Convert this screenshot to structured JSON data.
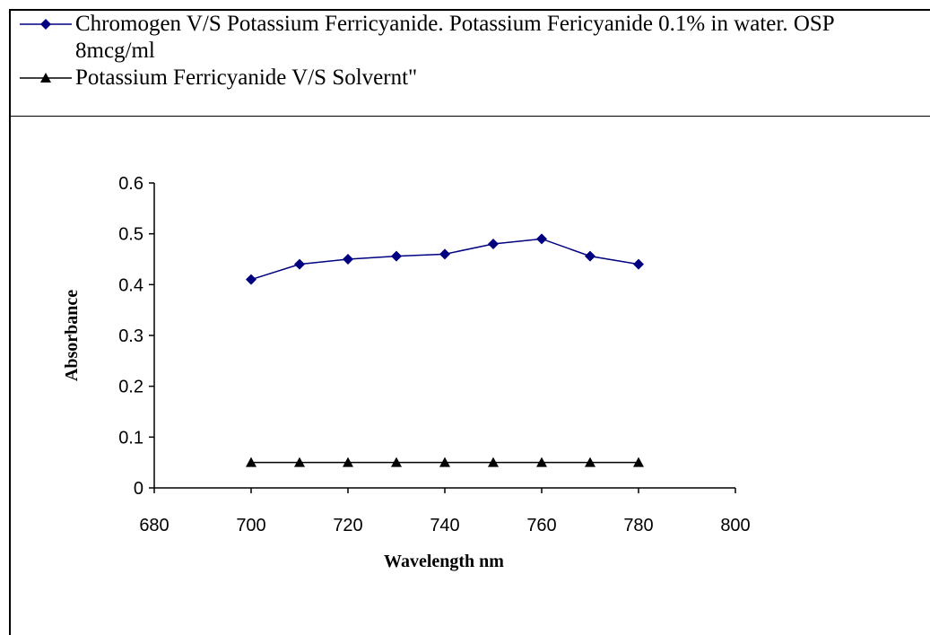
{
  "chart_data": {
    "type": "line",
    "x_label": "Wavelength nm",
    "y_label": "Absorbance",
    "x": [
      700,
      710,
      720,
      730,
      740,
      750,
      760,
      770,
      780
    ],
    "series": [
      {
        "name": "Chromogen V/S Potassium Ferricyanide. Potassium Fericyanide 0.1% in water. OSP 8mcg/ml",
        "color": "#000080",
        "marker": "diamond",
        "values": [
          0.41,
          0.44,
          0.45,
          0.456,
          0.46,
          0.48,
          0.49,
          0.456,
          0.44
        ]
      },
      {
        "name": "Potassium Ferricyanide V/S Solvernt\"",
        "color": "#000000",
        "marker": "triangle",
        "values": [
          0.05,
          0.05,
          0.05,
          0.05,
          0.05,
          0.05,
          0.05,
          0.05,
          0.05
        ]
      }
    ],
    "xlim": [
      680,
      800
    ],
    "xticks": [
      680,
      700,
      720,
      740,
      760,
      780,
      800
    ],
    "ylim": [
      0,
      0.6
    ],
    "yticks": [
      0,
      0.1,
      0.2,
      0.3,
      0.4,
      0.5,
      0.6
    ],
    "legend": "top"
  }
}
